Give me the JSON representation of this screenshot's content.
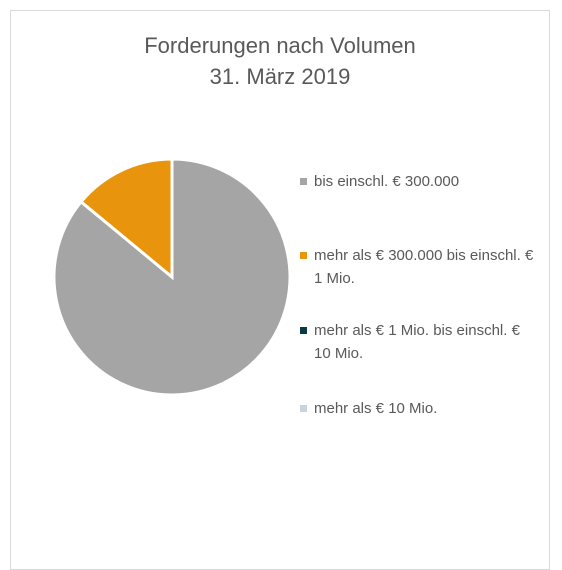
{
  "chart_data": {
    "type": "pie",
    "title": "Forderungen nach Volumen",
    "subtitle": "31. März 2019",
    "categories": [
      "bis einschl. € 300.000",
      "mehr als € 300.000  bis einschl. € 1 Mio.",
      "mehr als € 1 Mio. bis einschl. € 10 Mio.",
      "mehr als € 10 Mio."
    ],
    "values": [
      86,
      14,
      0,
      0
    ],
    "colors": [
      "#a5a5a5",
      "#e8940c",
      "#0b3a47",
      "#c8d3dc"
    ],
    "legend": "right"
  }
}
